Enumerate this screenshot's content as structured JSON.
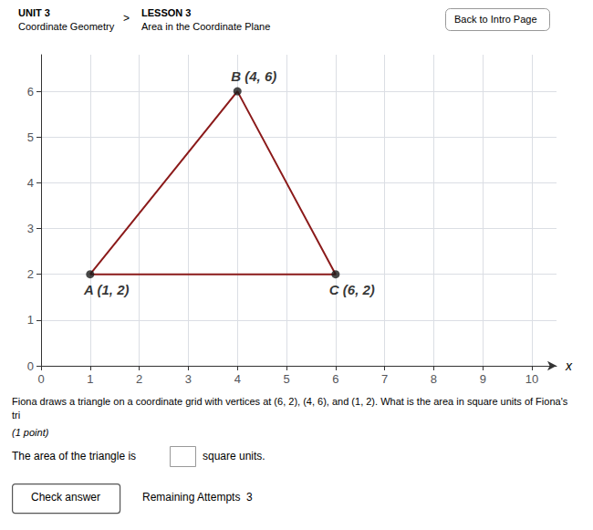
{
  "chart_data": {
    "type": "line",
    "x_label": "x",
    "xlim": [
      0,
      10.5
    ],
    "ylim": [
      0,
      6.8
    ],
    "xticks": [
      0,
      1,
      2,
      3,
      4,
      5,
      6,
      7,
      8,
      9,
      10
    ],
    "yticks": [
      0,
      1,
      2,
      3,
      4,
      5,
      6
    ],
    "grid": true,
    "series": [
      {
        "type": "line",
        "color": "#8B1A1A",
        "x": [
          1,
          4,
          6,
          1
        ],
        "values": [
          2,
          6,
          2,
          2
        ]
      },
      {
        "type": "scatter",
        "color": "#1a1a1a",
        "x": [
          1,
          4,
          6
        ],
        "values": [
          2,
          6,
          2
        ],
        "data_labels": true,
        "value_labels": [
          "A (1, 2)",
          "B (4, 6)",
          "C (6, 2)"
        ]
      }
    ],
    "annotations": [
      "UNIT 3",
      "Coordinate Geometry",
      ">",
      "LESSON 3",
      "Area in the Coordinate Plane",
      "Back to Intro Page",
      "Fiona draws a triangle on a coordinate grid with vertices at (6, 2), (4, 6), and (1, 2). What is the area in square units of Fiona's tri",
      "(1 point)",
      "The area of the triangle is",
      "square units.",
      "Check answer",
      "Remaining Attempts  3"
    ]
  }
}
